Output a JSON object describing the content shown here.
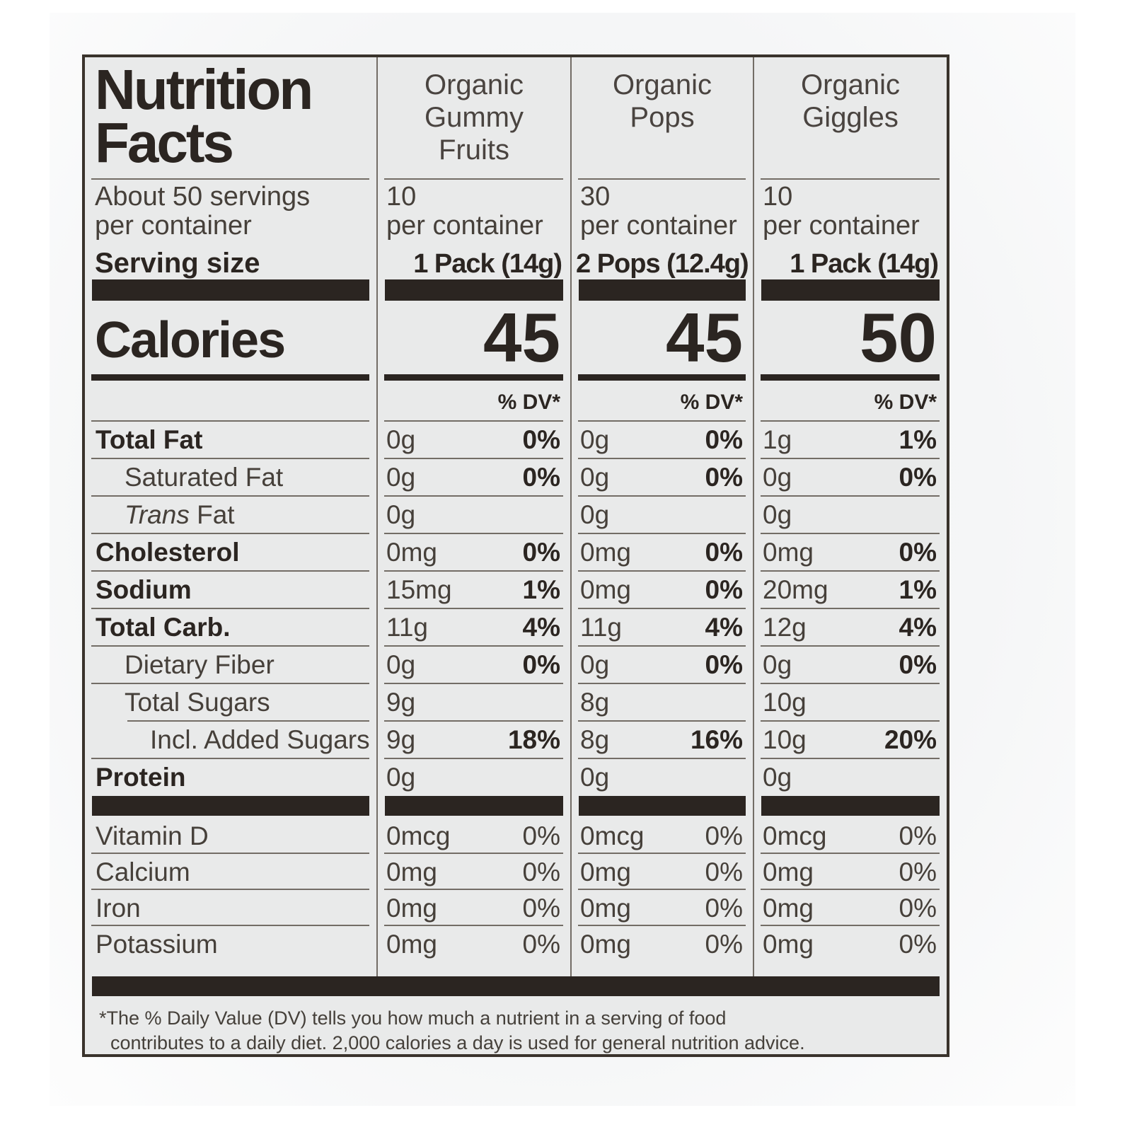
{
  "label": {
    "title": "Nutrition\nFacts",
    "servings": "About 50 servings\nper container",
    "serving_size_label": "Serving size",
    "calories_label": "Calories",
    "dv_header": "% DV*",
    "footnote_line1": "*The % Daily Value (DV) tells you how much a nutrient in a serving of food",
    "footnote_line2": "contributes to a daily diet. 2,000 calories a day is used for general nutrition advice."
  },
  "products": [
    {
      "name": "Organic\nGummy\nFruits",
      "per_container": "10\nper container",
      "serving_size": "1 Pack (14g)",
      "calories": "45"
    },
    {
      "name": "Organic\nPops",
      "per_container": "30\nper container",
      "serving_size": "2 Pops (12.4g)",
      "calories": "45"
    },
    {
      "name": "Organic\nGiggles",
      "per_container": "10\nper container",
      "serving_size": "1 Pack (14g)",
      "calories": "50"
    }
  ],
  "nutrients": [
    {
      "label": "Total Fat",
      "cols": [
        {
          "amt": "0g",
          "dv": "0%"
        },
        {
          "amt": "0g",
          "dv": "0%"
        },
        {
          "amt": "1g",
          "dv": "1%"
        }
      ]
    },
    {
      "label": "Saturated Fat",
      "cols": [
        {
          "amt": "0g",
          "dv": "0%"
        },
        {
          "amt": "0g",
          "dv": "0%"
        },
        {
          "amt": "0g",
          "dv": "0%"
        }
      ]
    },
    {
      "label_italic": "Trans",
      "label": " Fat",
      "cols": [
        {
          "amt": "0g"
        },
        {
          "amt": "0g"
        },
        {
          "amt": "0g"
        }
      ]
    },
    {
      "label": "Cholesterol",
      "cols": [
        {
          "amt": "0mg",
          "dv": "0%"
        },
        {
          "amt": "0mg",
          "dv": "0%"
        },
        {
          "amt": "0mg",
          "dv": "0%"
        }
      ]
    },
    {
      "label": "Sodium",
      "cols": [
        {
          "amt": "15mg",
          "dv": "1%"
        },
        {
          "amt": "0mg",
          "dv": "0%"
        },
        {
          "amt": "20mg",
          "dv": "1%"
        }
      ]
    },
    {
      "label": "Total Carb.",
      "cols": [
        {
          "amt": "11g",
          "dv": "4%"
        },
        {
          "amt": "11g",
          "dv": "4%"
        },
        {
          "amt": "12g",
          "dv": "4%"
        }
      ]
    },
    {
      "label": "Dietary Fiber",
      "cols": [
        {
          "amt": "0g",
          "dv": "0%"
        },
        {
          "amt": "0g",
          "dv": "0%"
        },
        {
          "amt": "0g",
          "dv": "0%"
        }
      ]
    },
    {
      "label": "Total Sugars",
      "cols": [
        {
          "amt": "9g"
        },
        {
          "amt": "8g"
        },
        {
          "amt": "10g"
        }
      ]
    },
    {
      "label": "Incl. Added Sugars",
      "cols": [
        {
          "amt": "9g",
          "dv": "18%"
        },
        {
          "amt": "8g",
          "dv": "16%"
        },
        {
          "amt": "10g",
          "dv": "20%"
        }
      ]
    },
    {
      "label": "Protein",
      "cols": [
        {
          "amt": "0g"
        },
        {
          "amt": "0g"
        },
        {
          "amt": "0g"
        }
      ]
    }
  ],
  "vitamins": [
    {
      "label": "Vitamin D",
      "cols": [
        {
          "amt": "0mcg",
          "dv": "0%"
        },
        {
          "amt": "0mcg",
          "dv": "0%"
        },
        {
          "amt": "0mcg",
          "dv": "0%"
        }
      ]
    },
    {
      "label": "Calcium",
      "cols": [
        {
          "amt": "0mg",
          "dv": "0%"
        },
        {
          "amt": "0mg",
          "dv": "0%"
        },
        {
          "amt": "0mg",
          "dv": "0%"
        }
      ]
    },
    {
      "label": "Iron",
      "cols": [
        {
          "amt": "0mg",
          "dv": "0%"
        },
        {
          "amt": "0mg",
          "dv": "0%"
        },
        {
          "amt": "0mg",
          "dv": "0%"
        }
      ]
    },
    {
      "label": "Potassium",
      "cols": [
        {
          "amt": "0mg",
          "dv": "0%"
        },
        {
          "amt": "0mg",
          "dv": "0%"
        },
        {
          "amt": "0mg",
          "dv": "0%"
        }
      ]
    }
  ]
}
